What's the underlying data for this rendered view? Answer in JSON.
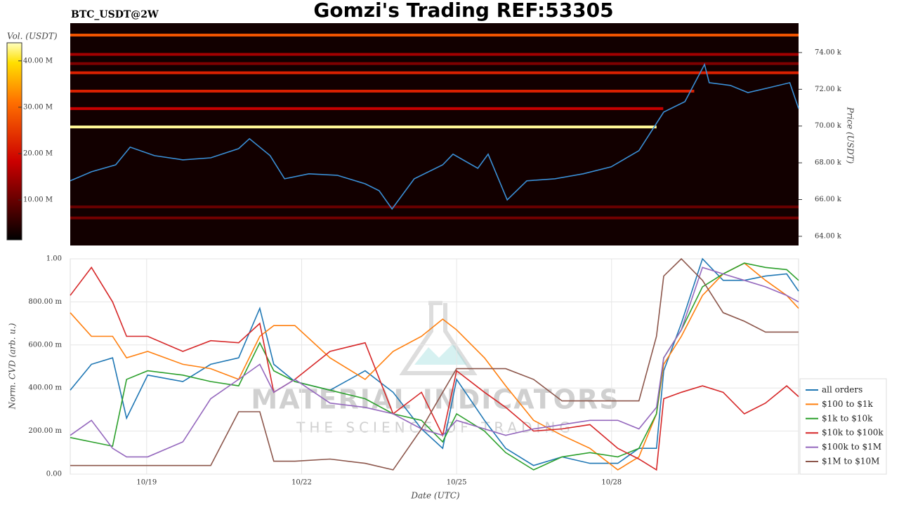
{
  "chart_data": [
    {
      "type": "heatmap",
      "title": "Gomzi's Trading REF:53305",
      "subtitle": "BTC_USDT@2W",
      "ylabel": "Price (USDT)",
      "colorbar_label": "Vol. (USDT)",
      "clim": [
        1400000,
        43900000
      ],
      "cticks": [
        {
          "value": 10000000,
          "label": "10.00 M"
        },
        {
          "value": 20000000,
          "label": "20.00 M"
        },
        {
          "value": 30000000,
          "label": "30.00 M"
        },
        {
          "value": 40000000,
          "label": "40.00 M"
        }
      ],
      "xlim": [
        17.52,
        31.62
      ],
      "ylim": [
        63500,
        75600
      ],
      "yticks": [
        {
          "value": 64000,
          "label": "64.00 k"
        },
        {
          "value": 66000,
          "label": "66.00 k"
        },
        {
          "value": 68000,
          "label": "68.00 k"
        },
        {
          "value": 70000,
          "label": "70.00 k"
        },
        {
          "value": 72000,
          "label": "72.00 k"
        },
        {
          "value": 74000,
          "label": "74.00 k"
        }
      ],
      "bands": [
        {
          "price": 74950,
          "volume": 28000000,
          "start": 17.52,
          "end": 31.62
        },
        {
          "price": 73900,
          "volume": 15000000,
          "start": 17.52,
          "end": 31.62
        },
        {
          "price": 73400,
          "volume": 12000000,
          "start": 17.52,
          "end": 31.62
        },
        {
          "price": 72900,
          "volume": 22000000,
          "start": 17.52,
          "end": 31.62
        },
        {
          "price": 71900,
          "volume": 22000000,
          "start": 17.52,
          "end": 29.6
        },
        {
          "price": 70950,
          "volume": 18000000,
          "start": 17.52,
          "end": 29.0
        },
        {
          "price": 69950,
          "volume": 43000000,
          "start": 17.52,
          "end": 28.87
        },
        {
          "price": 65600,
          "volume": 10000000,
          "start": 17.52,
          "end": 31.62
        },
        {
          "price": 65000,
          "volume": 11000000,
          "start": 17.52,
          "end": 31.62
        }
      ],
      "price": {
        "color": "#3a8fd6",
        "x": [
          17.52,
          17.93,
          18.4,
          18.68,
          19.15,
          19.7,
          20.24,
          20.78,
          20.99,
          21.39,
          21.67,
          22.14,
          22.69,
          23.23,
          23.5,
          23.75,
          24.18,
          24.73,
          24.93,
          25.41,
          25.61,
          25.98,
          26.36,
          26.9,
          27.45,
          27.99,
          28.53,
          29.01,
          29.42,
          29.8,
          29.89,
          30.3,
          30.64,
          31.05,
          31.45,
          31.62
        ],
        "values": [
          67020,
          67510,
          67890,
          68850,
          68390,
          68160,
          68270,
          68770,
          69310,
          68390,
          67130,
          67400,
          67320,
          66860,
          66480,
          65490,
          67130,
          67890,
          68470,
          67700,
          68470,
          65980,
          67020,
          67130,
          67400,
          67780,
          68660,
          70760,
          71330,
          73350,
          72360,
          72210,
          71820,
          72090,
          72360,
          70950
        ]
      }
    },
    {
      "type": "line",
      "xlabel": "Date (UTC)",
      "ylabel": "Norm. CVD (arb. u.)",
      "watermark": [
        "MATERIAL INDICATORS",
        "THE SCIENCE OF TRADING"
      ],
      "xlim": [
        17.52,
        31.62
      ],
      "ylim": [
        0,
        1
      ],
      "grid": true,
      "legend": "lower right",
      "xticks": [
        {
          "value": 19,
          "label": "10/19"
        },
        {
          "value": 22,
          "label": "10/22"
        },
        {
          "value": 25,
          "label": "10/25"
        },
        {
          "value": 28,
          "label": "10/28"
        }
      ],
      "yticks": [
        {
          "value": 0,
          "label": "0.00"
        },
        {
          "value": 0.2,
          "label": "200.00 m"
        },
        {
          "value": 0.4,
          "label": "400.00 m"
        },
        {
          "value": 0.6,
          "label": "600.00 m"
        },
        {
          "value": 0.8,
          "label": "800.00 m"
        },
        {
          "value": 1,
          "label": "1.00"
        }
      ],
      "x": [
        17.52,
        17.93,
        18.34,
        18.61,
        19.02,
        19.7,
        20.24,
        20.78,
        21.19,
        21.46,
        21.87,
        22.55,
        23.23,
        23.77,
        24.32,
        24.73,
        25.0,
        25.54,
        25.95,
        26.49,
        27.04,
        27.58,
        28.12,
        28.53,
        28.87,
        29.01,
        29.35,
        29.76,
        30.16,
        30.57,
        30.98,
        31.39,
        31.62
      ],
      "series": [
        {
          "name": "all orders",
          "color": "#1f77b4",
          "values": [
            0.39,
            0.51,
            0.54,
            0.26,
            0.46,
            0.43,
            0.51,
            0.54,
            0.77,
            0.51,
            0.43,
            0.39,
            0.48,
            0.38,
            0.21,
            0.12,
            0.44,
            0.25,
            0.12,
            0.04,
            0.08,
            0.05,
            0.05,
            0.12,
            0.12,
            0.48,
            0.7,
            1.0,
            0.9,
            0.9,
            0.92,
            0.93,
            0.85
          ]
        },
        {
          "name": "$100 to $1k",
          "color": "#ff7f0e",
          "values": [
            0.75,
            0.64,
            0.64,
            0.54,
            0.57,
            0.51,
            0.49,
            0.44,
            0.64,
            0.69,
            0.69,
            0.54,
            0.44,
            0.57,
            0.64,
            0.72,
            0.67,
            0.54,
            0.41,
            0.25,
            0.18,
            0.12,
            0.02,
            0.08,
            0.28,
            0.51,
            0.64,
            0.83,
            0.93,
            0.98,
            0.9,
            0.83,
            0.77
          ]
        },
        {
          "name": "$1k to $10k",
          "color": "#2ca02c",
          "values": [
            0.17,
            0.15,
            0.13,
            0.44,
            0.48,
            0.46,
            0.43,
            0.41,
            0.61,
            0.48,
            0.43,
            0.39,
            0.35,
            0.28,
            0.25,
            0.15,
            0.28,
            0.2,
            0.1,
            0.02,
            0.08,
            0.1,
            0.08,
            0.12,
            0.28,
            0.54,
            0.67,
            0.87,
            0.93,
            0.98,
            0.96,
            0.95,
            0.9
          ]
        },
        {
          "name": "$10k to $100k",
          "color": "#d62728",
          "values": [
            0.83,
            0.96,
            0.8,
            0.64,
            0.64,
            0.57,
            0.62,
            0.61,
            0.7,
            0.38,
            0.44,
            0.57,
            0.61,
            0.28,
            0.38,
            0.18,
            0.48,
            0.38,
            0.31,
            0.2,
            0.21,
            0.23,
            0.12,
            0.07,
            0.02,
            0.35,
            0.38,
            0.41,
            0.38,
            0.28,
            0.33,
            0.41,
            0.36
          ]
        },
        {
          "name": "$100k to $1M",
          "color": "#9467bd",
          "values": [
            0.18,
            0.25,
            0.12,
            0.08,
            0.08,
            0.15,
            0.35,
            0.44,
            0.51,
            0.38,
            0.44,
            0.33,
            0.31,
            0.28,
            0.21,
            0.18,
            0.25,
            0.21,
            0.18,
            0.21,
            0.23,
            0.25,
            0.25,
            0.21,
            0.31,
            0.54,
            0.67,
            0.96,
            0.93,
            0.9,
            0.87,
            0.83,
            0.8
          ]
        },
        {
          "name": "$1M to $10M",
          "color": "#8c564b",
          "values": [
            0.04,
            0.04,
            0.04,
            0.04,
            0.04,
            0.04,
            0.04,
            0.29,
            0.29,
            0.06,
            0.06,
            0.07,
            0.05,
            0.02,
            0.21,
            0.38,
            0.49,
            0.49,
            0.49,
            0.44,
            0.34,
            0.34,
            0.34,
            0.34,
            0.64,
            0.92,
            1.0,
            0.9,
            0.75,
            0.71,
            0.66,
            0.66,
            0.66
          ]
        }
      ]
    }
  ]
}
